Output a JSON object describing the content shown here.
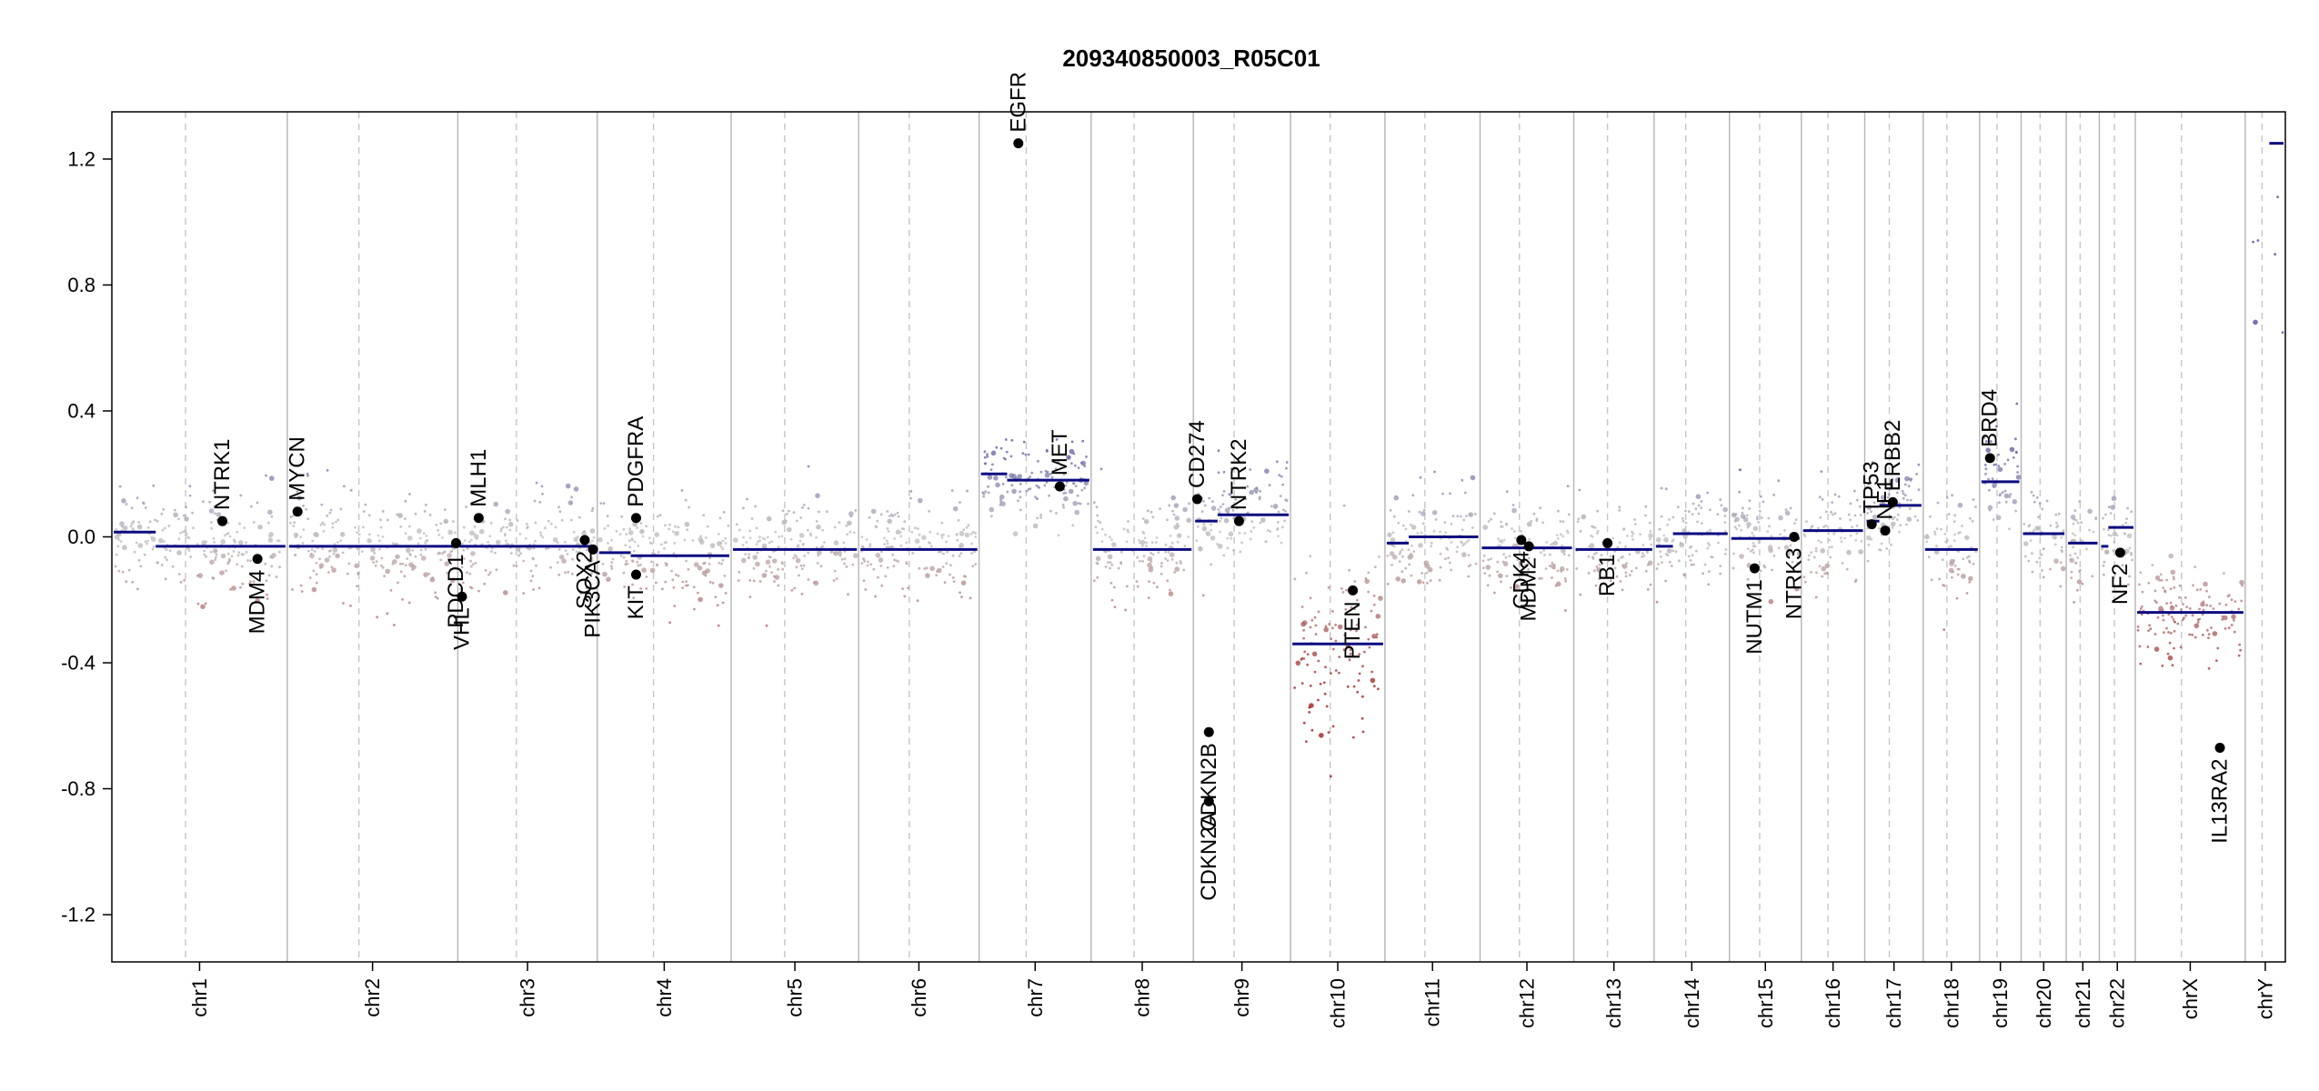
{
  "chart_data": {
    "type": "scatter",
    "title": "209340850003_R05C01",
    "ylim": [
      -1.35,
      1.35
    ],
    "y_ticks": [
      -1.2,
      -0.8,
      -0.4,
      0.0,
      0.4,
      0.8,
      1.2
    ],
    "y_tick_labels": [
      "-1.2",
      "-0.8",
      "-0.4",
      "0.0",
      "0.4",
      "0.8",
      "1.2"
    ],
    "chromosomes": [
      {
        "name": "chr1",
        "w": 2.49,
        "seg": -0.03,
        "seg2": 0.015
      },
      {
        "name": "chr2",
        "w": 2.42,
        "seg": -0.03
      },
      {
        "name": "chr3",
        "w": 1.98,
        "seg": -0.03
      },
      {
        "name": "chr4",
        "w": 1.9,
        "seg": -0.06,
        "seg2": -0.05
      },
      {
        "name": "chr5",
        "w": 1.81,
        "seg": -0.04
      },
      {
        "name": "chr6",
        "w": 1.71,
        "seg": -0.04
      },
      {
        "name": "chr7",
        "w": 1.59,
        "seg": 0.18,
        "seg2": 0.2
      },
      {
        "name": "chr8",
        "w": 1.45,
        "seg": -0.04
      },
      {
        "name": "chr9",
        "w": 1.38,
        "seg": 0.07,
        "seg2": 0.05
      },
      {
        "name": "chr10",
        "w": 1.34,
        "seg": -0.34
      },
      {
        "name": "chr11",
        "w": 1.35,
        "seg": 0.0,
        "seg2": -0.02
      },
      {
        "name": "chr12",
        "w": 1.33,
        "seg": -0.035
      },
      {
        "name": "chr13",
        "w": 1.14,
        "seg": -0.04
      },
      {
        "name": "chr14",
        "w": 1.07,
        "seg": 0.01,
        "seg2": -0.03
      },
      {
        "name": "chr15",
        "w": 1.02,
        "seg": -0.005
      },
      {
        "name": "chr16",
        "w": 0.9,
        "seg": 0.02
      },
      {
        "name": "chr17",
        "w": 0.83,
        "seg": 0.1,
        "seg2": 0.05
      },
      {
        "name": "chr18",
        "w": 0.8,
        "seg": -0.04
      },
      {
        "name": "chr19",
        "w": 0.59,
        "seg": 0.175
      },
      {
        "name": "chr20",
        "w": 0.64,
        "seg": 0.01
      },
      {
        "name": "chr21",
        "w": 0.47,
        "seg": -0.02
      },
      {
        "name": "chr22",
        "w": 0.51,
        "seg": 0.03,
        "seg2": -0.03
      },
      {
        "name": "chrX",
        "w": 1.56,
        "seg": -0.24
      },
      {
        "name": "chrY",
        "w": 0.57,
        "seg": 1.25
      }
    ],
    "genes": [
      {
        "name": "NTRK1",
        "chr": "chr1",
        "pos": 0.63,
        "y": 0.05
      },
      {
        "name": "MDM4",
        "chr": "chr1",
        "pos": 0.83,
        "y": -0.07
      },
      {
        "name": "MYCN",
        "chr": "chr2",
        "pos": 0.06,
        "y": 0.08
      },
      {
        "name": "VHL",
        "chr": "chr3",
        "pos": 0.03,
        "y": -0.19
      },
      {
        "name": "PDCD1",
        "chr": "chr2",
        "pos": 0.99,
        "y": -0.02
      },
      {
        "name": "MLH1",
        "chr": "chr3",
        "pos": 0.15,
        "y": 0.06
      },
      {
        "name": "SOX2",
        "chr": "chr3",
        "pos": 0.91,
        "y": -0.01
      },
      {
        "name": "PIK3CA",
        "chr": "chr3",
        "pos": 0.97,
        "y": -0.04
      },
      {
        "name": "PDGFRA",
        "chr": "chr4",
        "pos": 0.29,
        "y": 0.06
      },
      {
        "name": "KIT",
        "chr": "chr4",
        "pos": 0.29,
        "y": -0.12
      },
      {
        "name": "EGFR",
        "chr": "chr7",
        "pos": 0.35,
        "y": 1.25
      },
      {
        "name": "MET",
        "chr": "chr7",
        "pos": 0.72,
        "y": 0.16
      },
      {
        "name": "CD274",
        "chr": "chr9",
        "pos": 0.04,
        "y": 0.12
      },
      {
        "name": "CDKN2A",
        "chr": "chr9",
        "pos": 0.16,
        "y": -0.84
      },
      {
        "name": "CDKN2B",
        "chr": "chr9",
        "pos": 0.16,
        "y": -0.62
      },
      {
        "name": "NTRK2",
        "chr": "chr9",
        "pos": 0.47,
        "y": 0.05
      },
      {
        "name": "PTEN",
        "chr": "chr10",
        "pos": 0.66,
        "y": -0.17
      },
      {
        "name": "CDK4",
        "chr": "chr12",
        "pos": 0.44,
        "y": -0.01
      },
      {
        "name": "MDM2",
        "chr": "chr12",
        "pos": 0.52,
        "y": -0.03
      },
      {
        "name": "RB1",
        "chr": "chr13",
        "pos": 0.42,
        "y": -0.02
      },
      {
        "name": "NUTM1",
        "chr": "chr15",
        "pos": 0.35,
        "y": -0.1
      },
      {
        "name": "NTRK3",
        "chr": "chr15",
        "pos": 0.9,
        "y": 0.0
      },
      {
        "name": "TP53",
        "chr": "chr17",
        "pos": 0.12,
        "y": 0.04
      },
      {
        "name": "NF1",
        "chr": "chr17",
        "pos": 0.35,
        "y": 0.02
      },
      {
        "name": "ERBB2",
        "chr": "chr17",
        "pos": 0.48,
        "y": 0.11
      },
      {
        "name": "BRD4",
        "chr": "chr19",
        "pos": 0.25,
        "y": 0.25
      },
      {
        "name": "NF2",
        "chr": "chr22",
        "pos": 0.58,
        "y": -0.05
      },
      {
        "name": "IL13RA2",
        "chr": "chrX",
        "pos": 0.77,
        "y": -0.67
      }
    ]
  }
}
